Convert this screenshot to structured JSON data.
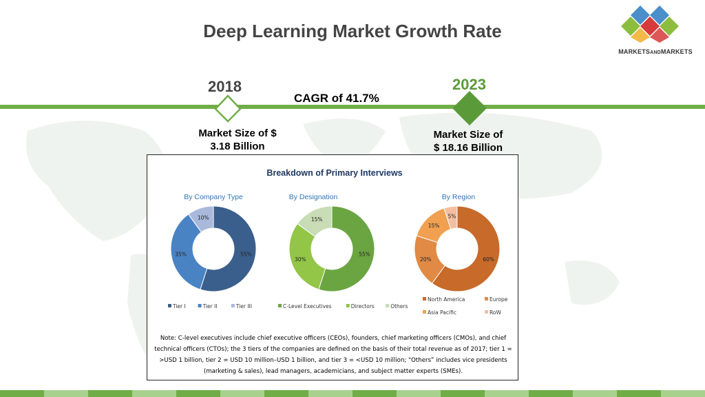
{
  "slide": {
    "title": "Deep Learning Market Growth Rate"
  },
  "logo": {
    "text_main": "MARKETS",
    "text_and": "AND",
    "text_end": "MARKETS",
    "colors": [
      "#4a8fc9",
      "#8cbd3f",
      "#d63a3a",
      "#8cbd3f",
      "#4a8fc9"
    ]
  },
  "timeline": {
    "start_year": "2018",
    "end_year": "2023",
    "cagr_text": "CAGR of 41.7%",
    "start_size_line1": "Market Size of $",
    "start_size_line2": "3.18 Billion",
    "end_size_line1": "Market Size of",
    "end_size_line2": "$ 18.16 Billion",
    "bar_color": "#70ad47"
  },
  "panel": {
    "title": "Breakdown of Primary Interviews",
    "note": "Note: C-level executives include chief executive officers (CEOs), founders, chief marketing officers (CMOs), and chief technical officers (CTOs); the 3 tiers of the companies are defined on the basis of their total revenue as of 2017; tier 1 = >USD 1 billion, tier 2 = USD 10 million–USD 1 billion, and tier 3 = <USD 10 million; “Others” includes vice presidents (marketing & sales), lead managers, academicians, and subject matter experts (SMEs)."
  },
  "chart_data": [
    {
      "type": "pie",
      "title": "By Company Type",
      "categories": [
        "Tier I",
        "Tier II",
        "Tier III"
      ],
      "values": [
        55,
        35,
        10
      ],
      "labels": [
        "55%",
        "35%",
        "10%"
      ],
      "colors": [
        "#3b5f8c",
        "#4a83c4",
        "#a9b9dc"
      ],
      "legend": [
        "Tier I",
        "Tier II",
        "Tier III"
      ]
    },
    {
      "type": "pie",
      "title": "By Designation",
      "categories": [
        "C-Level Executives",
        "Directors",
        "Others"
      ],
      "values": [
        55,
        30,
        15
      ],
      "labels": [
        "55%",
        "30%",
        "15%"
      ],
      "colors": [
        "#6aa542",
        "#93c547",
        "#c8dcb6"
      ],
      "legend": [
        "C-Level Executives",
        "Directors",
        "Others"
      ]
    },
    {
      "type": "pie",
      "title": "By Region",
      "categories": [
        "North America",
        "Europe",
        "Asia Pacific",
        "RoW"
      ],
      "values": [
        60,
        20,
        15,
        5
      ],
      "labels": [
        "60%",
        "20%",
        "15%",
        "5%"
      ],
      "colors": [
        "#c76a2a",
        "#e08a45",
        "#f0a050",
        "#f4bfa0"
      ],
      "legend": [
        "North America",
        "Europe",
        "Asia Pacific",
        "RoW"
      ]
    }
  ],
  "footer": {
    "colors": [
      "#70ad47",
      "#a9d18e"
    ]
  }
}
